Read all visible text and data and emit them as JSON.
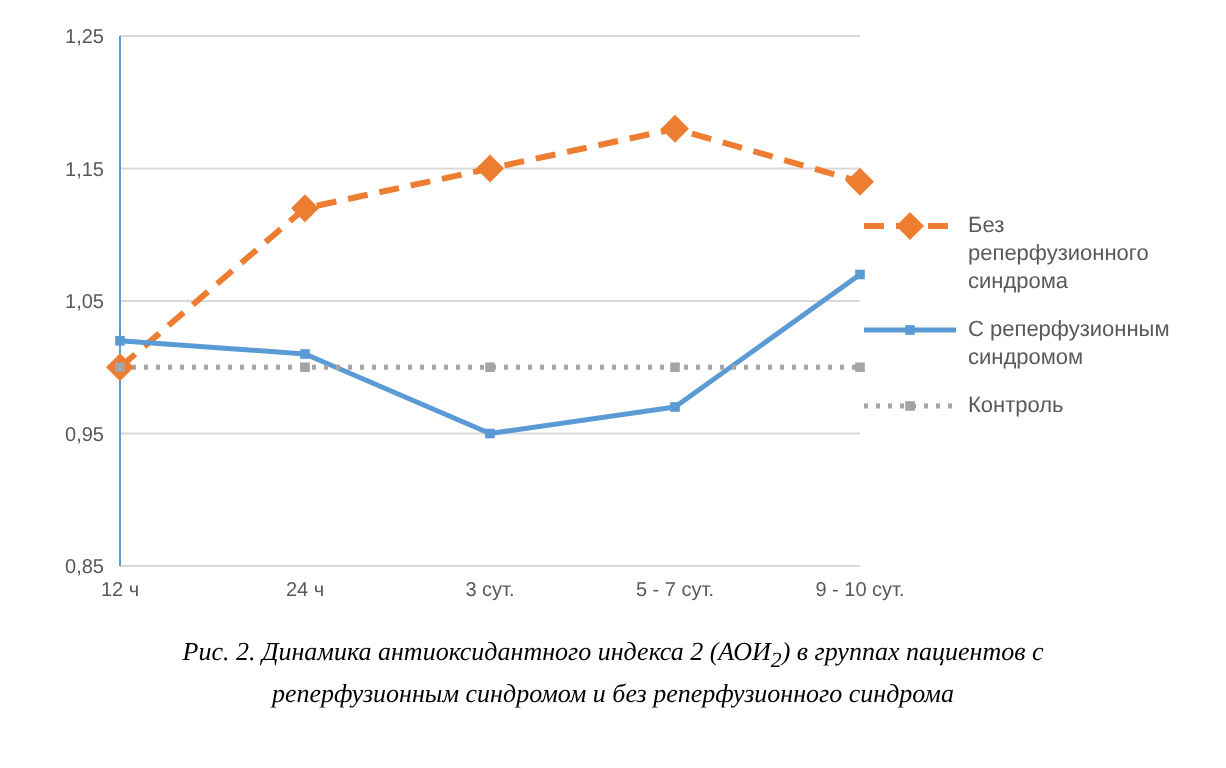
{
  "chart_data": {
    "type": "line",
    "categories": [
      "12 ч",
      "24 ч",
      "3 сут.",
      "5 - 7 сут.",
      "9 - 10 сут."
    ],
    "series": [
      {
        "name": "Без реперфузионного синдрома",
        "color": "#ed7d31",
        "values": [
          1.0,
          1.12,
          1.15,
          1.18,
          1.14
        ],
        "marker": "diamond",
        "line_style": "dashed"
      },
      {
        "name": "С реперфузионным синдромом",
        "color": "#5b9bd5",
        "values": [
          1.02,
          1.01,
          0.95,
          0.97,
          1.07
        ],
        "marker": "square",
        "line_style": "solid"
      },
      {
        "name": "Контроль",
        "color": "#a5a5a5",
        "values": [
          1.0,
          1.0,
          1.0,
          1.0,
          1.0
        ],
        "marker": "square",
        "line_style": "dotted"
      }
    ],
    "ylim": [
      0.85,
      1.25
    ],
    "yticks": [
      {
        "value": 0.85,
        "label": "0,85"
      },
      {
        "value": 0.95,
        "label": "0,95"
      },
      {
        "value": 1.05,
        "label": "1,05"
      },
      {
        "value": 1.15,
        "label": "1,15"
      },
      {
        "value": 1.25,
        "label": "1,25"
      }
    ],
    "grid": "y",
    "legend": "right",
    "annotations": [
      "Рис. 2. Динамика антиоксидантного индекса 2 (АОИ$_{2}$) в группах пациентов с реперфузионным синдромом и без реперфузионного синдрома"
    ]
  }
}
